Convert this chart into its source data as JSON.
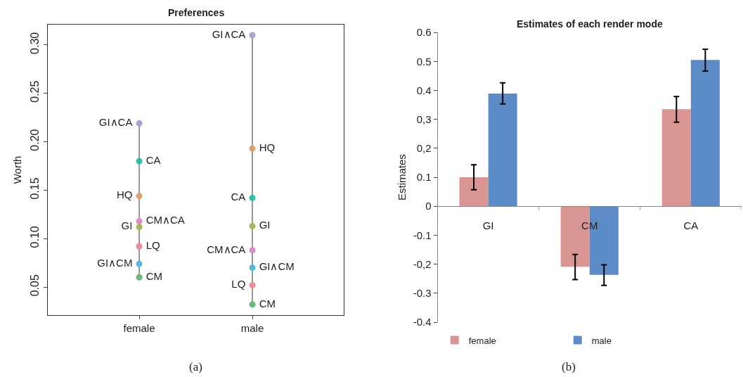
{
  "chart_data": [
    {
      "type": "scatter",
      "title": "Preferences",
      "ylabel": "Worth",
      "categories": [
        "female",
        "male"
      ],
      "ylim": [
        0.021,
        0.321
      ],
      "yticks": [
        {
          "value": 0.05,
          "label": "0.05"
        },
        {
          "value": 0.1,
          "label": "0.10"
        },
        {
          "value": 0.15,
          "label": "0.15"
        },
        {
          "value": 0.2,
          "label": "0.20"
        },
        {
          "value": 0.25,
          "label": "0.25"
        },
        {
          "value": 0.3,
          "label": "0.30"
        }
      ],
      "marker": "circle",
      "legend": false,
      "series": [
        {
          "name": "GI∧CA",
          "color": "#aaa2d2",
          "values": [
            0.219,
            0.31
          ]
        },
        {
          "name": "CA",
          "color": "#2ebfa8",
          "values": [
            0.18,
            0.142
          ]
        },
        {
          "name": "HQ",
          "color": "#d9a26c",
          "values": [
            0.144,
            0.193
          ]
        },
        {
          "name": "CM∧CA",
          "color": "#d890c6",
          "values": [
            0.118,
            0.088
          ]
        },
        {
          "name": "GI",
          "color": "#abb35c",
          "values": [
            0.112,
            0.113
          ]
        },
        {
          "name": "LQ",
          "color": "#e98b98",
          "values": [
            0.092,
            0.052
          ]
        },
        {
          "name": "GI∧CM",
          "color": "#5bb5dd",
          "values": [
            0.074,
            0.07
          ]
        },
        {
          "name": "CM",
          "color": "#68ba7b",
          "values": [
            0.06,
            0.032
          ]
        }
      ],
      "annotations": [
        "(a)"
      ]
    },
    {
      "type": "bar",
      "title": "Estimates of each render mode",
      "ylabel": "Estimates",
      "categories": [
        "GI",
        "CM",
        "CA"
      ],
      "ylim": [
        -0.4,
        0.6
      ],
      "yticks": [
        {
          "value": -0.4,
          "label": "-0.4"
        },
        {
          "value": -0.3,
          "label": "-0.3"
        },
        {
          "value": -0.2,
          "label": "-0,2"
        },
        {
          "value": -0.1,
          "label": "-0.1"
        },
        0,
        {
          "value": 0.1,
          "label": "0.1"
        },
        {
          "value": 0.2,
          "label": "0,2"
        },
        {
          "value": 0.3,
          "label": "0,3"
        },
        {
          "value": 0.4,
          "label": "0.4"
        },
        {
          "value": 0.5,
          "label": "0.5"
        },
        {
          "value": 0.6,
          "label": "0.6"
        }
      ],
      "legend": "bottom",
      "series": [
        {
          "name": "female",
          "color": "#d99594",
          "values": [
            0.1,
            -0.209,
            0.335
          ],
          "errors": [
            [
              0.057,
              0.143
            ],
            [
              -0.253,
              -0.166
            ],
            [
              0.29,
              0.379
            ]
          ]
        },
        {
          "name": "male",
          "color": "#5b8cc8",
          "values": [
            0.389,
            -0.237,
            0.505
          ],
          "errors": [
            [
              0.353,
              0.426
            ],
            [
              -0.273,
              -0.202
            ],
            [
              0.467,
              0.542
            ]
          ]
        }
      ],
      "annotations": [
        "(b)"
      ]
    }
  ]
}
